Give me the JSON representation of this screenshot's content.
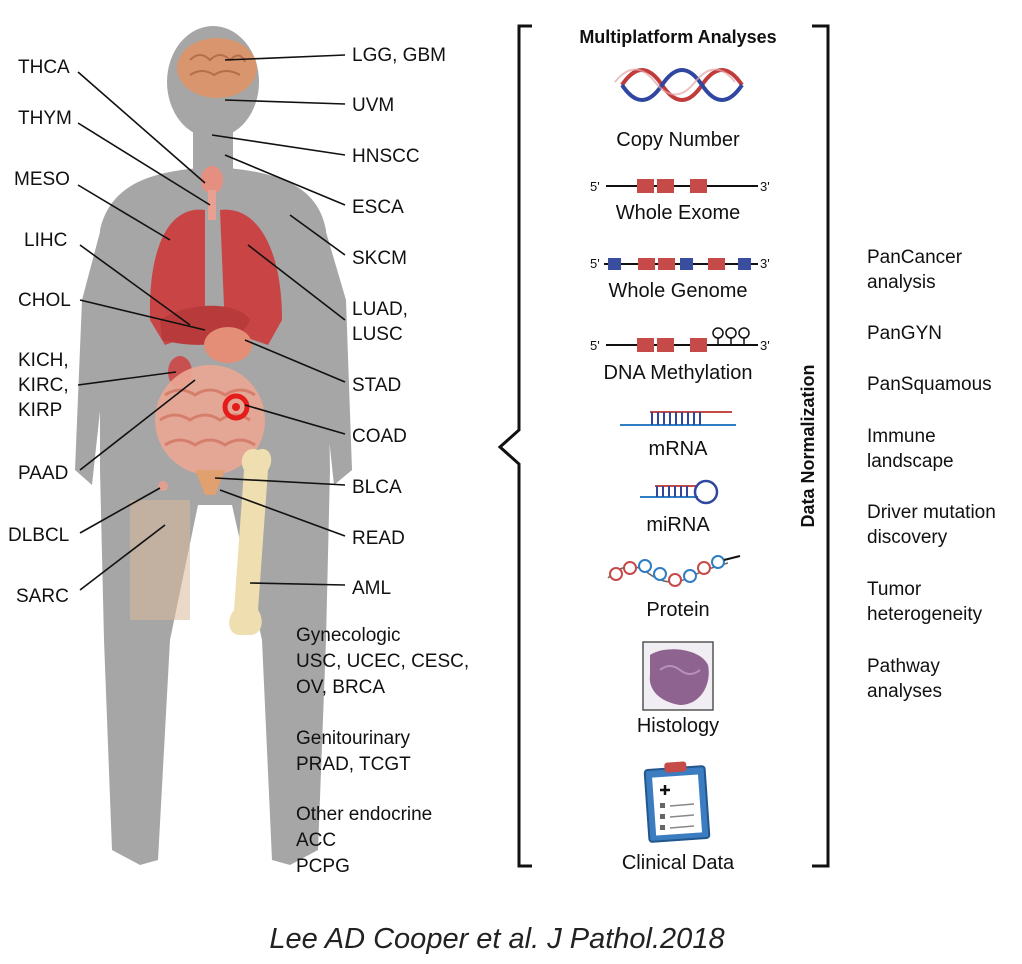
{
  "title": "Multiplatform Analyses",
  "axis_label": "Data Normalization",
  "left_labels": [
    "THCA",
    "THYM",
    "MESO",
    "LIHC",
    "CHOL",
    "KICH,",
    "KIRC,",
    "KIRP",
    "PAAD",
    "DLBCL",
    "SARC"
  ],
  "right_labels": [
    "LGG, GBM",
    "UVM",
    "HNSCC",
    "ESCA",
    "SKCM",
    "LUAD,",
    "LUSC",
    "STAD",
    "COAD",
    "BLCA",
    "READ",
    "AML"
  ],
  "groups": [
    {
      "name": "Gynecologic",
      "lines": [
        "USC, UCEC, CESC,",
        "OV, BRCA"
      ]
    },
    {
      "name": "Genitourinary",
      "lines": [
        "PRAD, TCGT"
      ]
    },
    {
      "name": "Other endocrine",
      "lines": [
        "ACC",
        "PCPG"
      ]
    }
  ],
  "platforms": [
    "Copy Number",
    "Whole Exome",
    "Whole Genome",
    "DNA Methylation",
    "mRNA",
    "miRNA",
    "Protein",
    "Histology",
    "Clinical Data"
  ],
  "strand_ends": {
    "five": "5'",
    "three": "3'"
  },
  "analyses": [
    [
      "PanCancer",
      "analysis"
    ],
    [
      "PanGYN"
    ],
    [
      "PanSquamous"
    ],
    [
      "Immune",
      "landscape"
    ],
    [
      "Driver mutation",
      "discovery"
    ],
    [
      "Tumor",
      "heterogeneity"
    ],
    [
      "Pathway",
      "analyses"
    ]
  ],
  "citation": "Lee AD Cooper et al. J Pathol.2018",
  "colors": {
    "body": "#a9a9a9",
    "organ": "#c94040",
    "exon": "#c64a48",
    "intron": "#3a4ea0",
    "line": "#111111"
  }
}
